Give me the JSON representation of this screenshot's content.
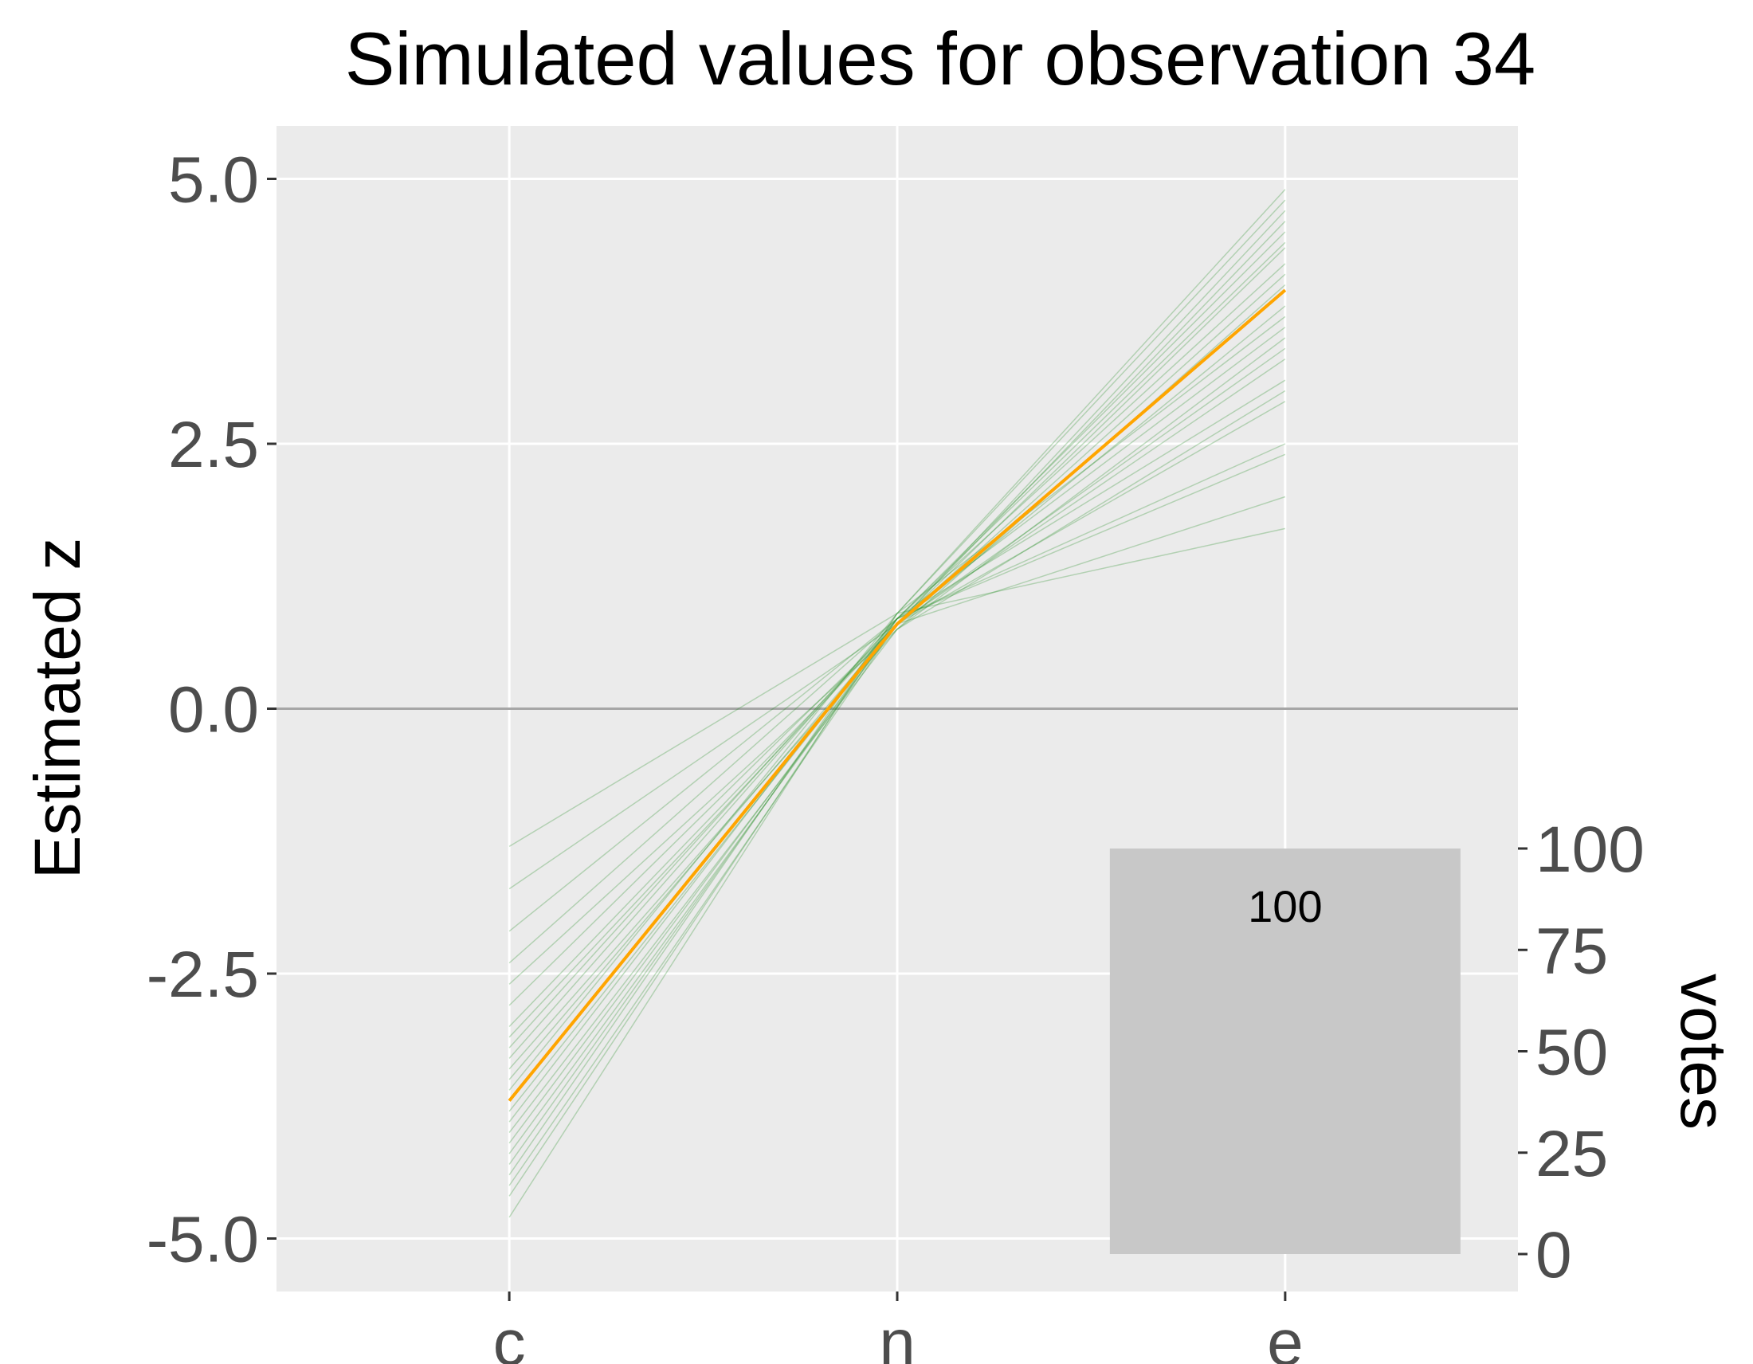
{
  "chart_data": {
    "type": "line",
    "title": "Simulated values for observation 34",
    "ylabel": "Estimated z",
    "categories": [
      "c",
      "n",
      "e"
    ],
    "ylim": [
      -5.5,
      5.5
    ],
    "y_ticks": [
      "-5.0",
      "-2.5",
      "0.0",
      "2.5",
      "5.0"
    ],
    "y_tick_values": [
      -5.0,
      -2.5,
      0.0,
      2.5,
      5.0
    ],
    "reference_line_y": 0.0,
    "grid": true,
    "series": [
      {
        "role": "point-estimate",
        "values": [
          -3.7,
          0.8,
          3.95
        ],
        "color": "#FFA500"
      }
    ],
    "simulations": {
      "color": "#228B22",
      "values": [
        [
          -3.7,
          0.8,
          3.95
        ],
        [
          -4.8,
          0.9,
          4.9
        ],
        [
          -1.3,
          0.9,
          1.7
        ],
        [
          -1.7,
          0.8,
          2.0
        ],
        [
          -2.1,
          0.85,
          2.4
        ],
        [
          -2.6,
          0.75,
          3.0
        ],
        [
          -3.0,
          0.8,
          3.3
        ],
        [
          -3.3,
          0.85,
          3.6
        ],
        [
          -3.5,
          0.8,
          3.8
        ],
        [
          -3.9,
          0.85,
          4.2
        ],
        [
          -4.1,
          0.8,
          4.35
        ],
        [
          -4.3,
          0.85,
          4.5
        ],
        [
          -4.5,
          0.8,
          4.7
        ],
        [
          -4.0,
          0.75,
          4.0
        ],
        [
          -3.2,
          0.85,
          3.1
        ],
        [
          -2.8,
          0.8,
          2.9
        ],
        [
          -3.6,
          0.9,
          3.7
        ],
        [
          -4.2,
          0.8,
          4.6
        ],
        [
          -3.4,
          0.75,
          3.5
        ],
        [
          -3.8,
          0.8,
          4.1
        ],
        [
          -4.6,
          0.85,
          4.4
        ],
        [
          -2.4,
          0.85,
          2.5
        ],
        [
          -3.1,
          0.8,
          3.4
        ],
        [
          -4.4,
          0.9,
          4.8
        ]
      ]
    },
    "inset_bar": {
      "category": "e",
      "value": 100,
      "label": "100",
      "axis_title": "votes",
      "ylim": [
        0,
        100
      ],
      "ticks": [
        "0",
        "25",
        "50",
        "75",
        "100"
      ],
      "tick_values": [
        0,
        25,
        50,
        75,
        100
      ],
      "color": "#C8C8C8"
    }
  }
}
